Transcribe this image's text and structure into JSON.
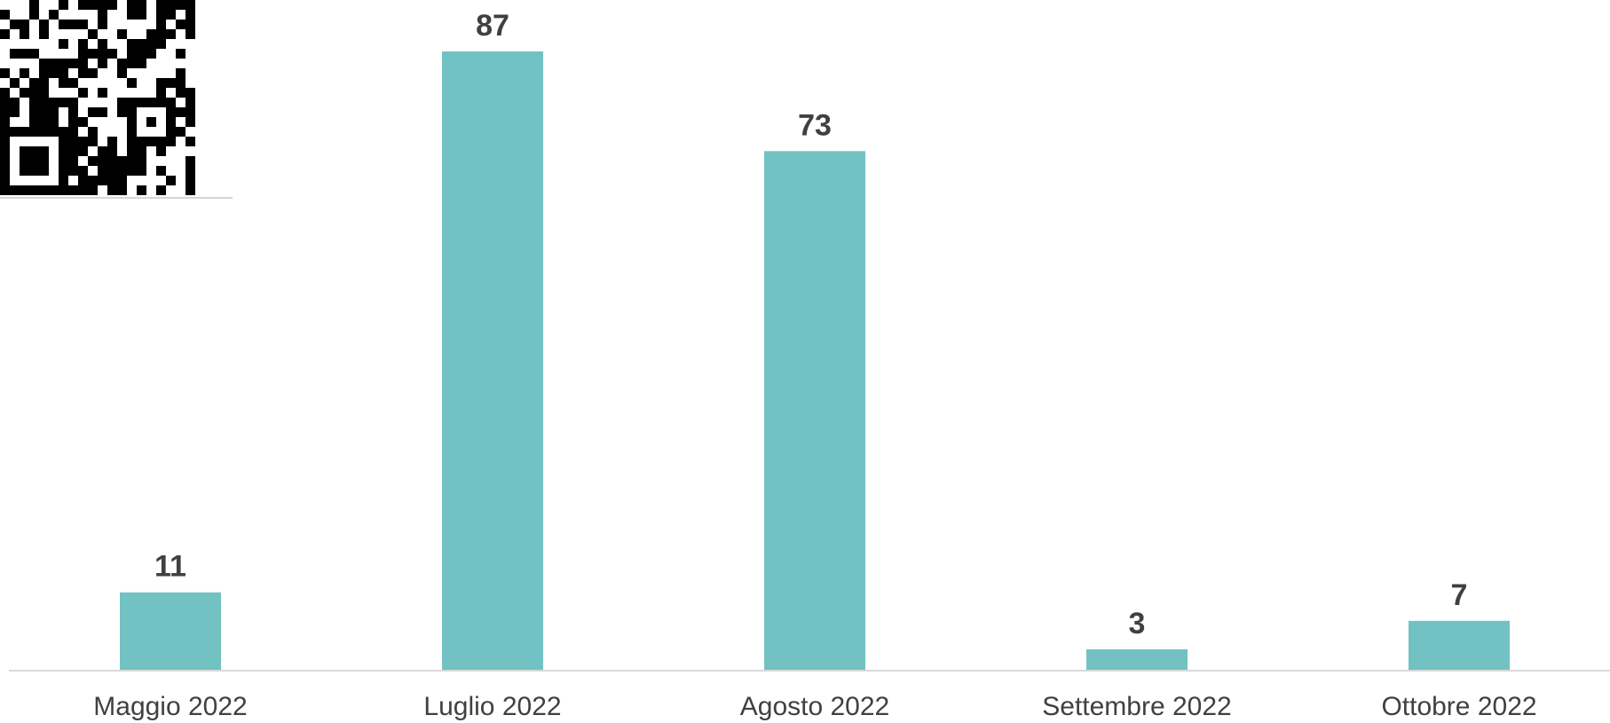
{
  "chart_data": {
    "type": "bar",
    "categories": [
      "Maggio 2022",
      "Luglio 2022",
      "Agosto 2022",
      "Settembre 2022",
      "Ottobre 2022"
    ],
    "values": [
      11,
      87,
      73,
      3,
      7
    ],
    "title": "",
    "xlabel": "",
    "ylabel": "",
    "ylim": [
      0,
      87
    ],
    "grid": false,
    "data_labels": true,
    "bar_color": "#73C2C3",
    "axis_color": "#D9D9D9",
    "text_color": "#404040"
  },
  "qr_code": {
    "icon": "qr-code-icon"
  }
}
